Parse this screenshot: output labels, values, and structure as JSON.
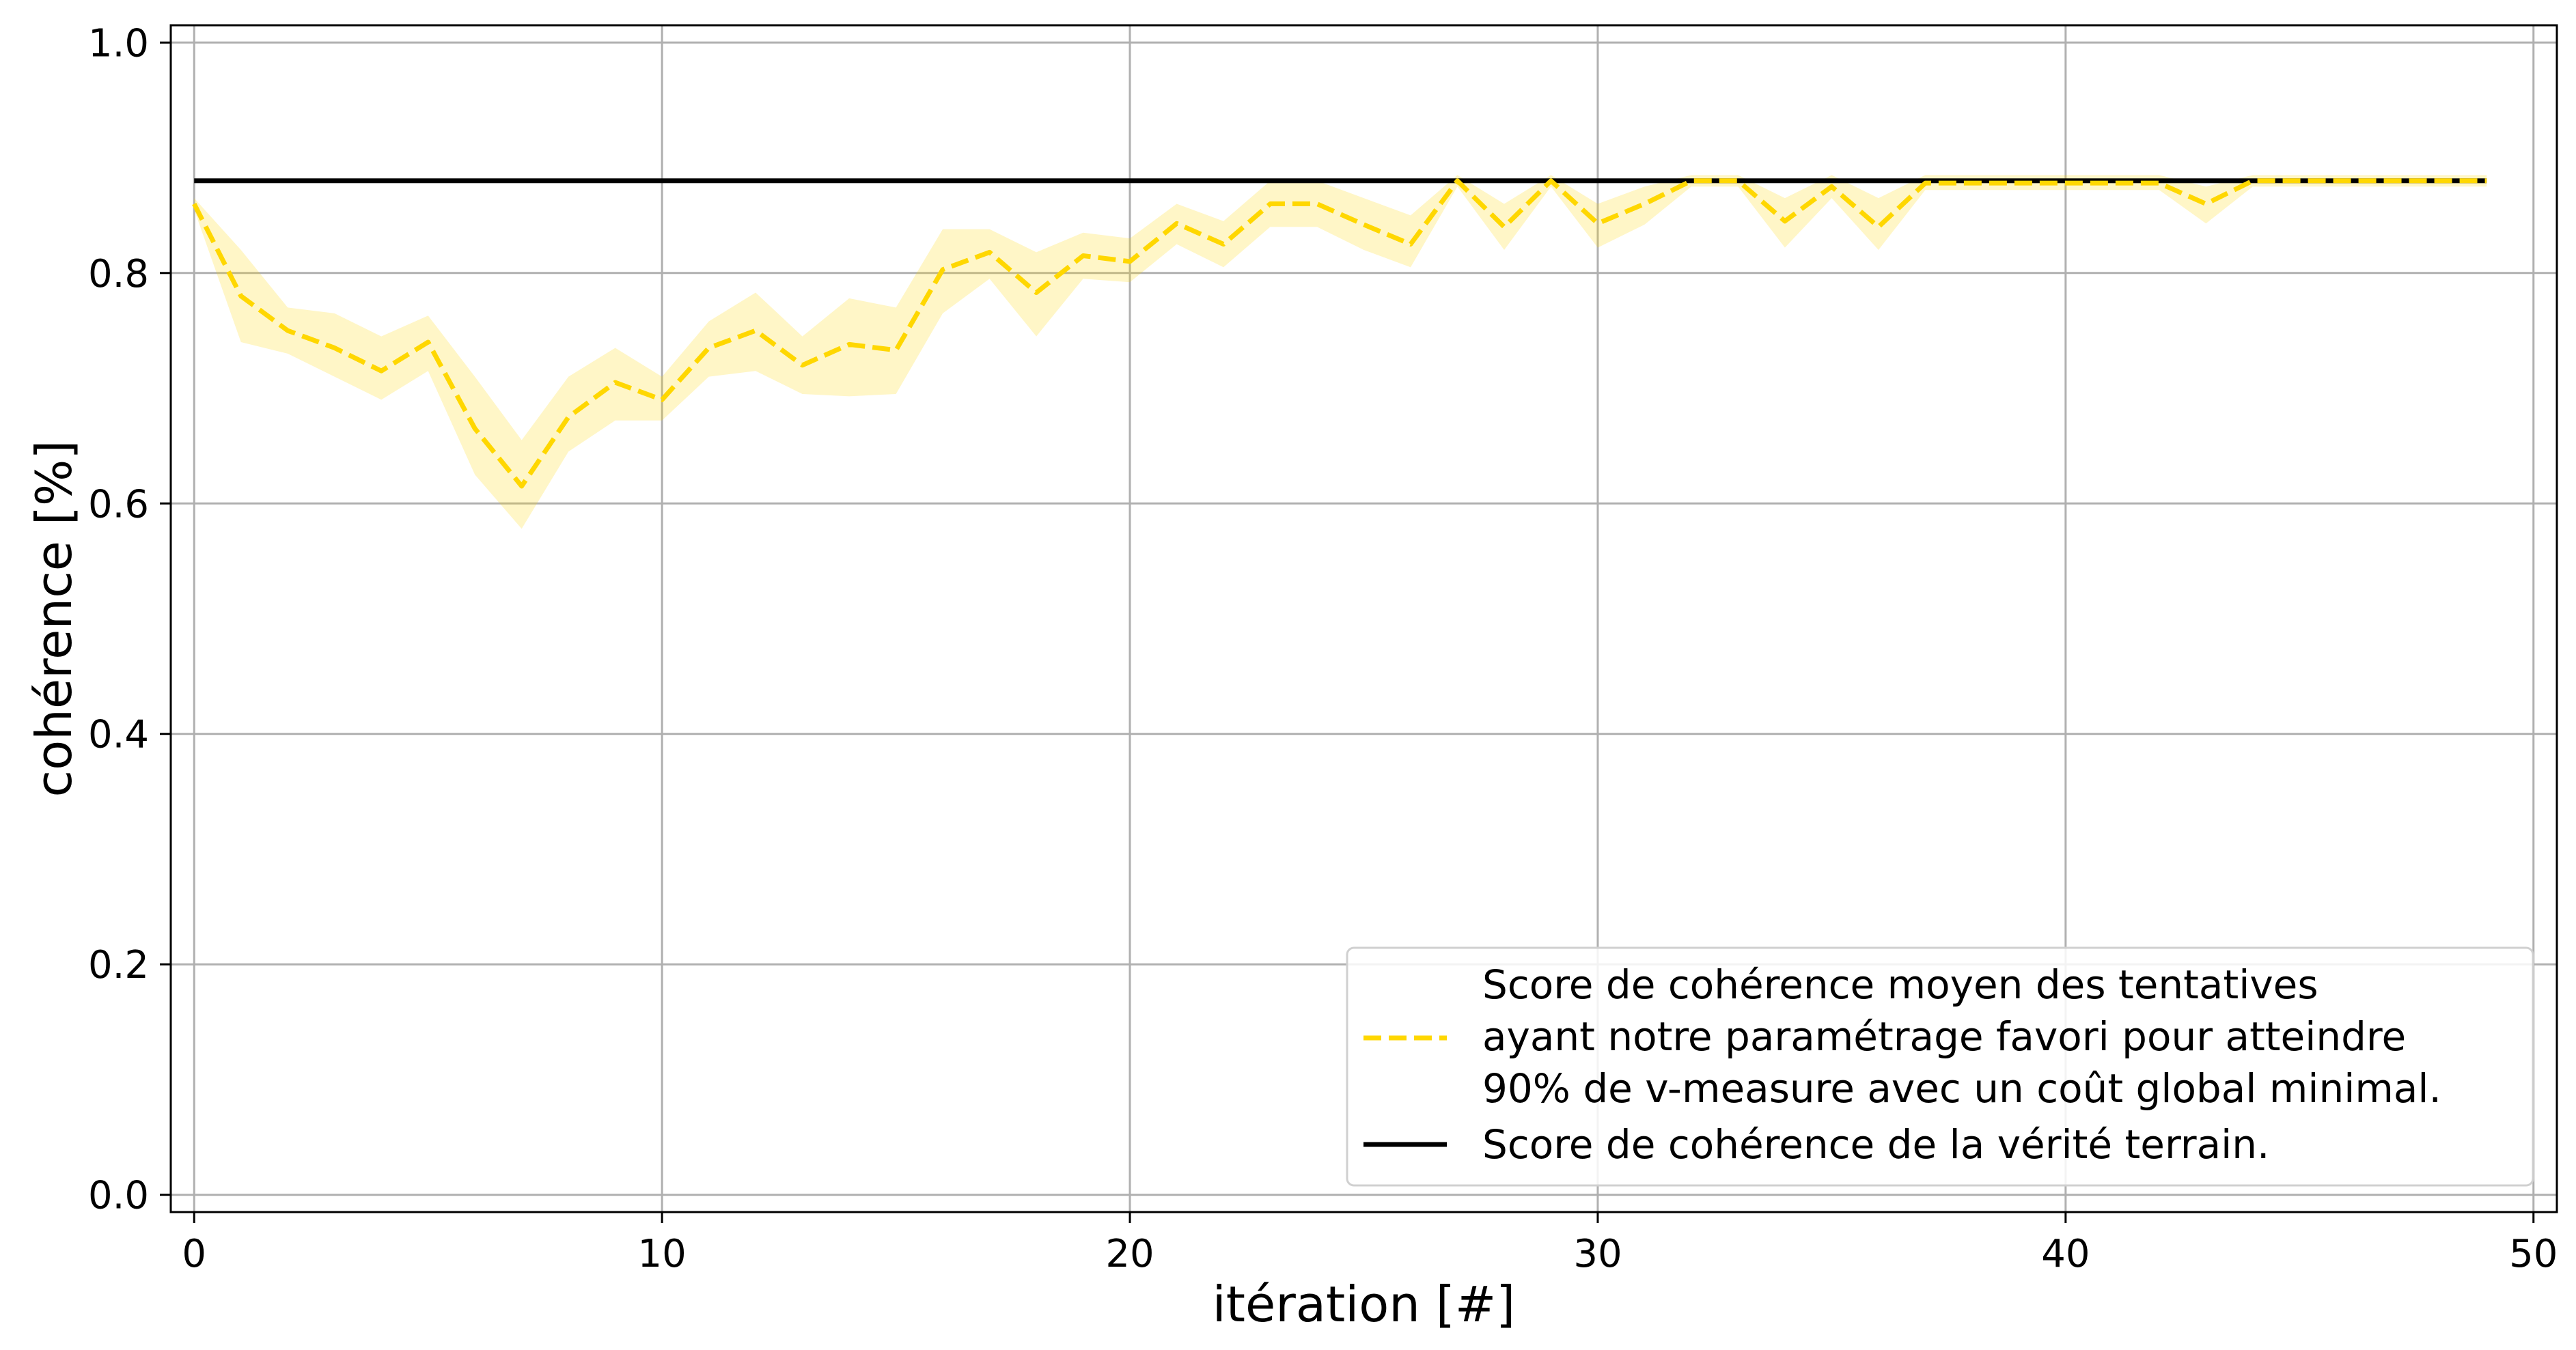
{
  "chart_data": {
    "type": "line",
    "xlabel": "itération [#]",
    "ylabel": "cohérence [%]",
    "xlim": [
      -0.5,
      50.5
    ],
    "ylim": [
      -0.015,
      1.015
    ],
    "xticks": [
      "0",
      "10",
      "20",
      "30",
      "40",
      "50"
    ],
    "yticks": [
      "0.0",
      "0.2",
      "0.4",
      "0.6",
      "0.8",
      "1.0"
    ],
    "grid": true,
    "legend_position": "lower-right",
    "x": [
      0,
      1,
      2,
      3,
      4,
      5,
      6,
      7,
      8,
      9,
      10,
      11,
      12,
      13,
      14,
      15,
      16,
      17,
      18,
      19,
      20,
      21,
      22,
      23,
      24,
      25,
      26,
      27,
      28,
      29,
      30,
      31,
      32,
      33,
      34,
      35,
      36,
      37,
      38,
      39,
      40,
      41,
      42,
      43,
      44,
      45,
      46,
      47,
      48,
      49
    ],
    "series": [
      {
        "name": "Score de cohérence moyen des tentatives ayant notre paramétrage favori pour atteindre 90% de v-measure avec un coût global minimal.",
        "legend_lines": [
          "Score de cohérence moyen des tentatives",
          "ayant notre paramétrage favori pour atteindre",
          "90% de v-measure avec un coût global minimal."
        ],
        "color": "#ffd700",
        "style": "dashed",
        "values": [
          0.86,
          0.78,
          0.75,
          0.735,
          0.715,
          0.74,
          0.665,
          0.615,
          0.675,
          0.705,
          0.69,
          0.735,
          0.75,
          0.72,
          0.738,
          0.733,
          0.803,
          0.818,
          0.783,
          0.815,
          0.81,
          0.843,
          0.825,
          0.86,
          0.86,
          0.842,
          0.825,
          0.88,
          0.84,
          0.88,
          0.843,
          0.86,
          0.88,
          0.88,
          0.845,
          0.875,
          0.84,
          0.878,
          0.878,
          0.878,
          0.878,
          0.878,
          0.878,
          0.86,
          0.88,
          0.88,
          0.88,
          0.88,
          0.88,
          0.88
        ],
        "upper": [
          0.865,
          0.82,
          0.77,
          0.765,
          0.745,
          0.763,
          0.71,
          0.655,
          0.71,
          0.735,
          0.71,
          0.758,
          0.783,
          0.745,
          0.778,
          0.77,
          0.838,
          0.838,
          0.818,
          0.835,
          0.83,
          0.86,
          0.845,
          0.88,
          0.88,
          0.865,
          0.85,
          0.885,
          0.86,
          0.885,
          0.86,
          0.875,
          0.885,
          0.885,
          0.865,
          0.885,
          0.865,
          0.885,
          0.885,
          0.885,
          0.885,
          0.885,
          0.885,
          0.875,
          0.885,
          0.885,
          0.885,
          0.885,
          0.885,
          0.885
        ],
        "lower": [
          0.855,
          0.74,
          0.73,
          0.71,
          0.69,
          0.715,
          0.625,
          0.578,
          0.645,
          0.672,
          0.672,
          0.71,
          0.715,
          0.695,
          0.693,
          0.695,
          0.765,
          0.795,
          0.745,
          0.795,
          0.792,
          0.825,
          0.805,
          0.84,
          0.84,
          0.82,
          0.805,
          0.875,
          0.82,
          0.875,
          0.822,
          0.842,
          0.875,
          0.875,
          0.822,
          0.865,
          0.82,
          0.872,
          0.872,
          0.872,
          0.872,
          0.872,
          0.872,
          0.843,
          0.875,
          0.875,
          0.875,
          0.875,
          0.875,
          0.875
        ],
        "band_color": "#ffd700"
      },
      {
        "name": "Score de cohérence de la vérité terrain.",
        "color": "#000000",
        "style": "solid",
        "values": [
          0.88,
          0.88,
          0.88,
          0.88,
          0.88,
          0.88,
          0.88,
          0.88,
          0.88,
          0.88,
          0.88,
          0.88,
          0.88,
          0.88,
          0.88,
          0.88,
          0.88,
          0.88,
          0.88,
          0.88,
          0.88,
          0.88,
          0.88,
          0.88,
          0.88,
          0.88,
          0.88,
          0.88,
          0.88,
          0.88,
          0.88,
          0.88,
          0.88,
          0.88,
          0.88,
          0.88,
          0.88,
          0.88,
          0.88,
          0.88,
          0.88,
          0.88,
          0.88,
          0.88,
          0.88,
          0.88,
          0.88,
          0.88,
          0.88,
          0.88
        ]
      }
    ]
  }
}
